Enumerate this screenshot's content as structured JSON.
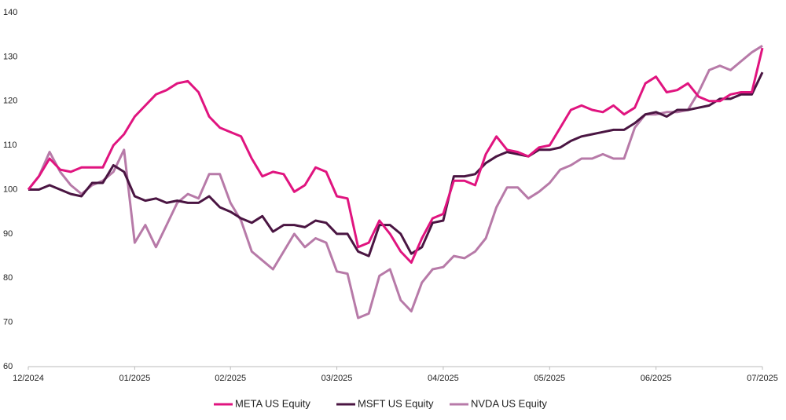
{
  "chart_data": {
    "type": "line",
    "categories": [
      "12/2024",
      null,
      null,
      null,
      null,
      null,
      null,
      null,
      null,
      null,
      "01/2025",
      null,
      null,
      null,
      null,
      null,
      null,
      null,
      null,
      "02/2025",
      null,
      null,
      null,
      null,
      null,
      null,
      null,
      null,
      null,
      "03/2025",
      null,
      null,
      null,
      null,
      null,
      null,
      null,
      null,
      null,
      "04/2025",
      null,
      null,
      null,
      null,
      null,
      null,
      null,
      null,
      null,
      "05/2025",
      null,
      null,
      null,
      null,
      null,
      null,
      null,
      null,
      null,
      "06/2025",
      null,
      null,
      null,
      null,
      null,
      null,
      null,
      null,
      null,
      "07/2025"
    ],
    "series": [
      {
        "name": "META US Equity",
        "color": "#e0147f",
        "values": [
          100,
          103,
          107,
          104.5,
          104,
          105,
          105,
          105,
          110,
          112.5,
          116.5,
          119,
          121.5,
          122.5,
          124,
          124.5,
          122,
          116.5,
          114,
          113,
          112,
          107,
          103,
          104,
          103.5,
          99.5,
          101,
          105,
          104,
          98.5,
          98,
          87,
          88,
          93,
          90,
          86,
          83.5,
          89,
          93.5,
          94.5,
          102,
          102,
          101,
          108,
          112,
          109,
          108.5,
          107.5,
          109.5,
          110,
          114,
          118,
          119,
          118,
          117.5,
          119,
          117,
          118.5,
          124,
          125.5,
          122,
          122.5,
          124,
          121,
          120,
          120,
          121.5,
          122,
          122,
          132
        ]
      },
      {
        "name": "MSFT US Equity",
        "color": "#4a1542",
        "values": [
          100,
          100,
          101,
          100,
          99,
          98.5,
          101.5,
          101.5,
          105.5,
          104,
          98.5,
          97.5,
          98,
          97,
          97.5,
          97,
          97,
          98.5,
          96,
          95,
          93.5,
          92.5,
          94,
          90.5,
          92,
          92,
          91.5,
          93,
          92.5,
          90,
          90,
          86,
          85,
          92,
          92,
          90,
          85.5,
          87,
          92.5,
          93,
          103,
          103,
          103.5,
          106,
          107.5,
          108.5,
          108,
          107.5,
          109,
          109,
          109.5,
          111,
          112,
          112.5,
          113,
          113.5,
          113.5,
          115,
          117,
          117.5,
          116.5,
          118,
          118,
          118.5,
          119,
          120.5,
          120.5,
          121.5,
          121.5,
          126.5
        ]
      },
      {
        "name": "NVDA US Equity",
        "color": "#b77aa8",
        "values": [
          100,
          103,
          108.5,
          104,
          101,
          99,
          101,
          102,
          104,
          109,
          88,
          92,
          87,
          92,
          97,
          99,
          98,
          103.5,
          103.5,
          97,
          93,
          86,
          84,
          82,
          86,
          90,
          87,
          89,
          88,
          81.5,
          81,
          71,
          72,
          80.5,
          82,
          75,
          72.5,
          79,
          82,
          82.5,
          85,
          84.5,
          86,
          89,
          96,
          100.5,
          100.5,
          98,
          99.5,
          101.5,
          104.5,
          105.5,
          107,
          107,
          108,
          107,
          107,
          114,
          117,
          117,
          117.5,
          117.5,
          118,
          122,
          127,
          128,
          127,
          129,
          131,
          132.5
        ]
      }
    ],
    "ylim": [
      60,
      140
    ],
    "yticks": [
      60,
      70,
      80,
      90,
      100,
      110,
      120,
      130,
      140
    ],
    "grid": false,
    "legend": "bottom"
  }
}
